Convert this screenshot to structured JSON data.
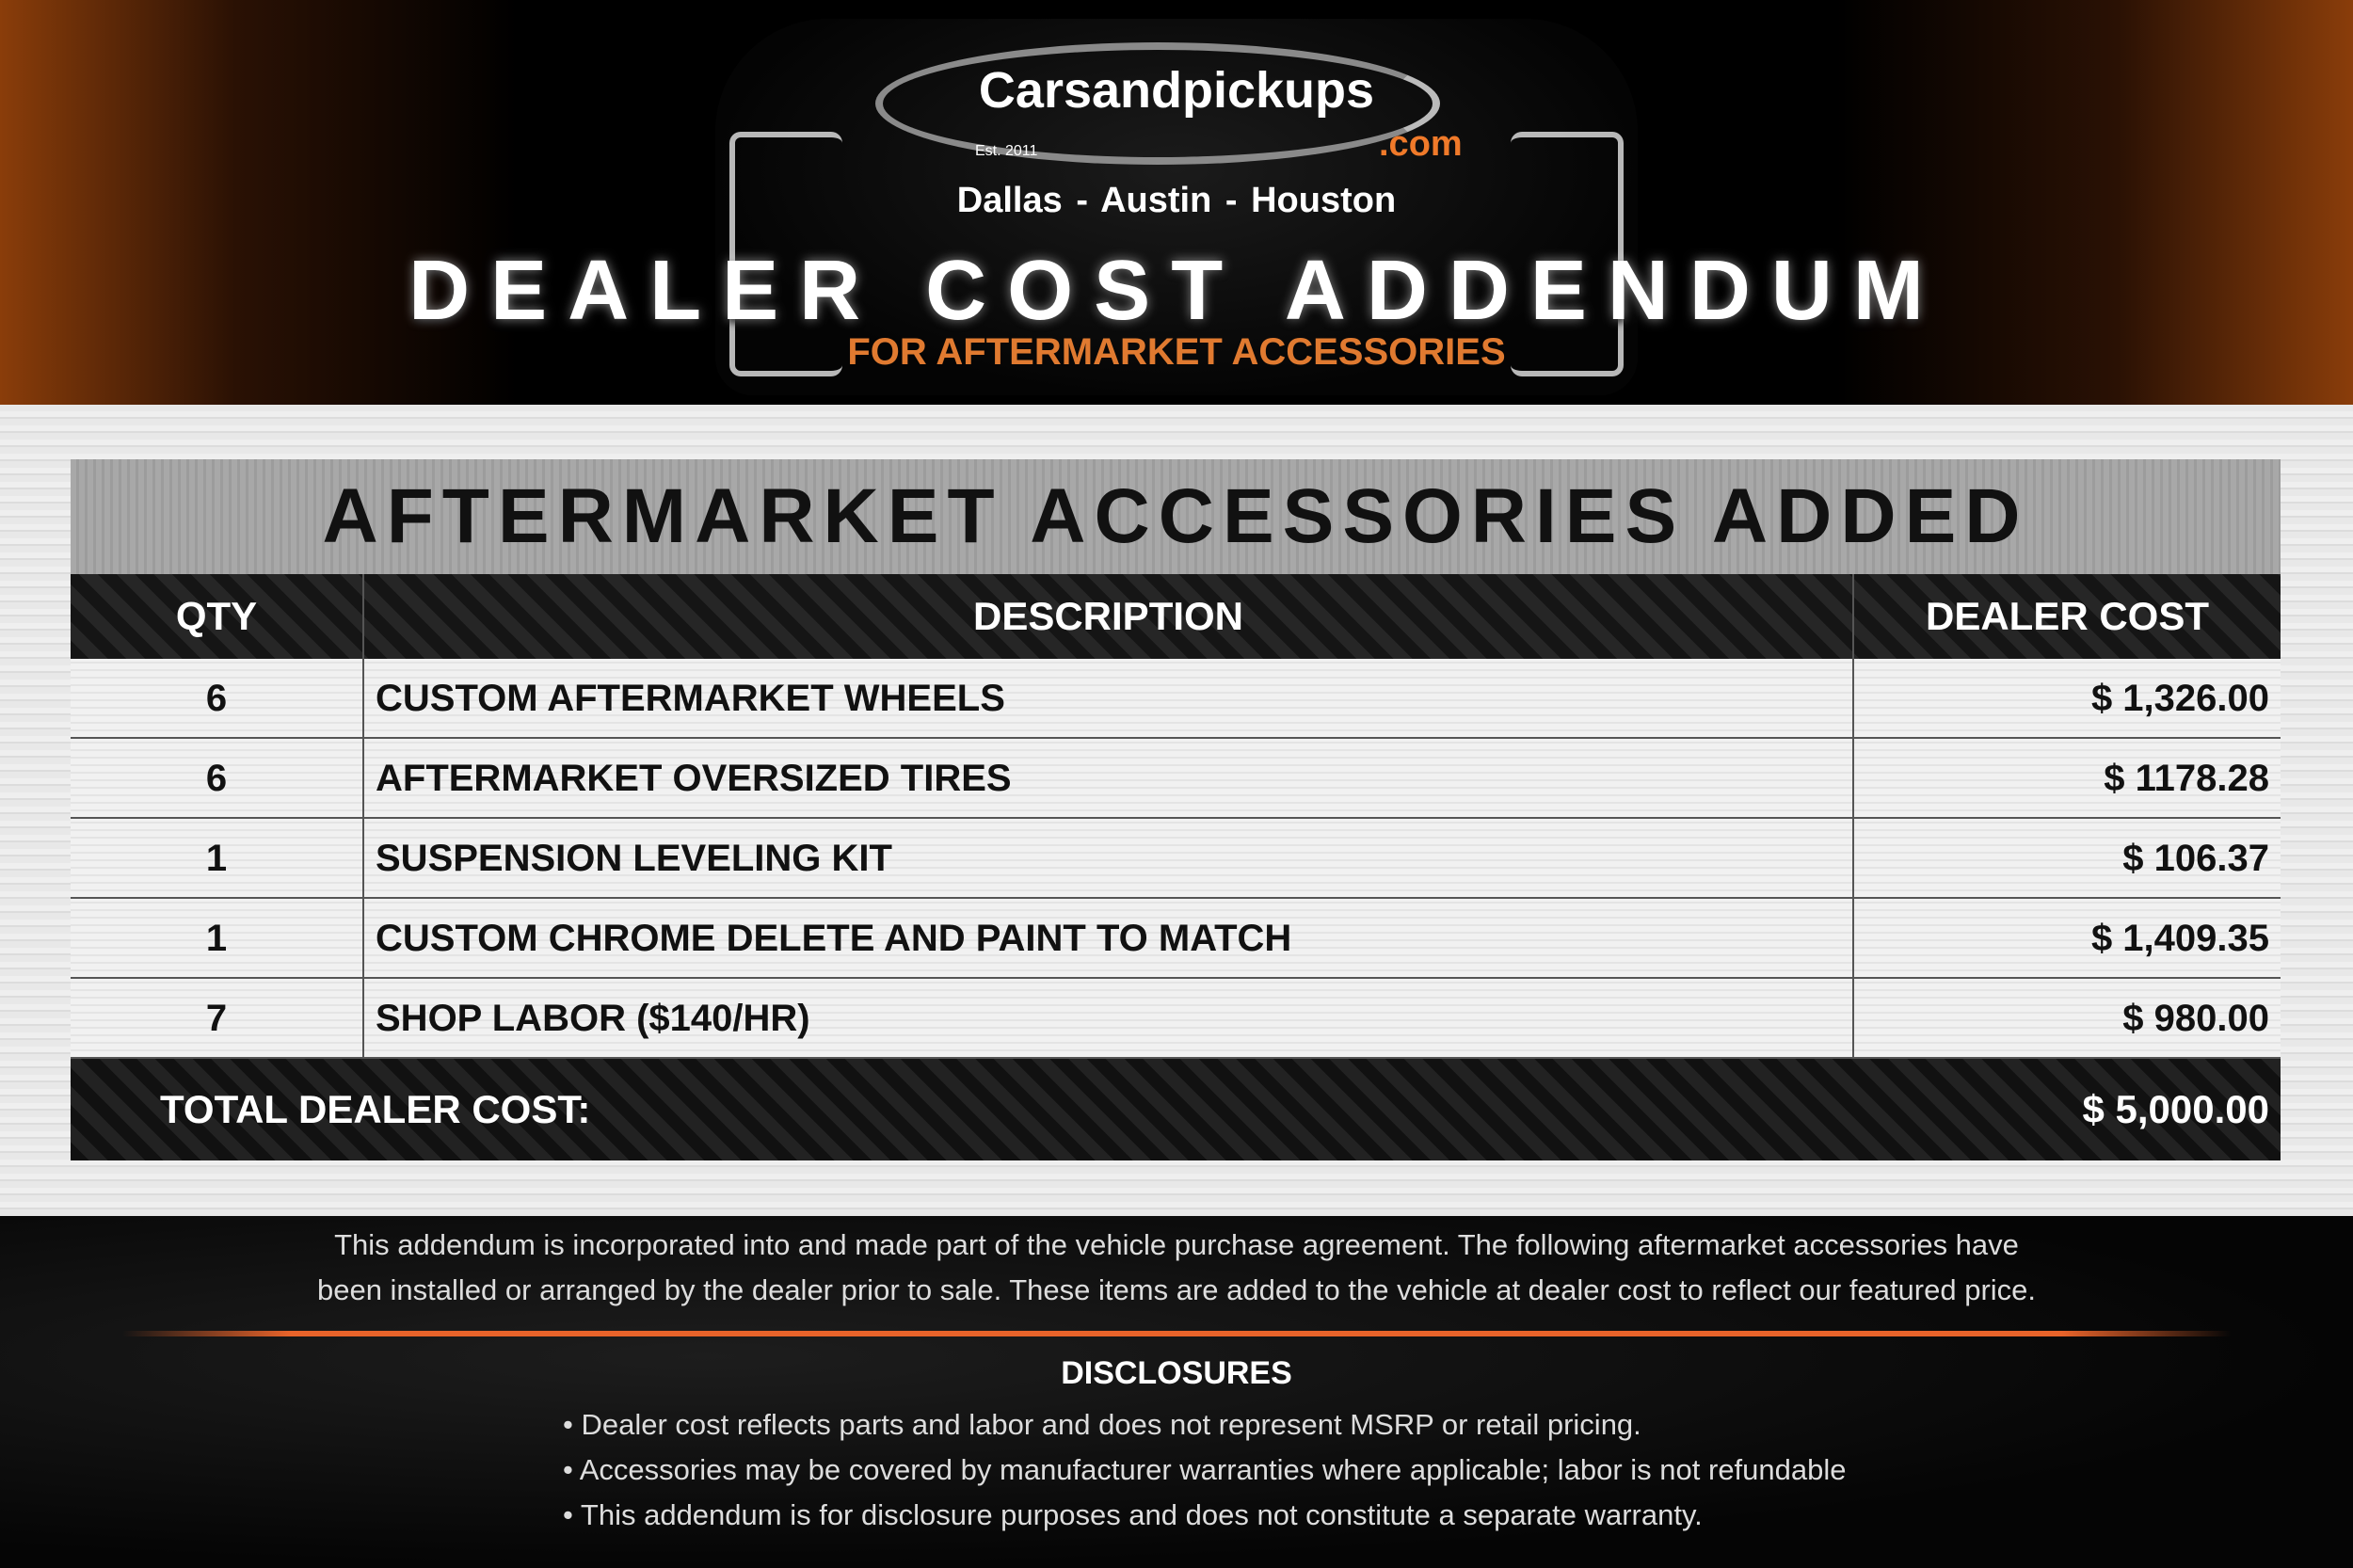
{
  "header": {
    "brand": "Carsandpickups",
    "est": "Est. 2011",
    "domain": ".com",
    "cities": "Dallas  -  Austin  -  Houston",
    "title": "DEALER COST ADDENDUM",
    "subtitle": "FOR AFTERMARKET ACCESSORIES",
    "accent": "#e07a30"
  },
  "table": {
    "title": "AFTERMARKET ACCESSORIES ADDED",
    "columns": [
      "QTY",
      "DESCRIPTION",
      "DEALER COST"
    ],
    "rows": [
      {
        "qty": "6",
        "description": "CUSTOM AFTERMARKET WHEELS",
        "cost": "$ 1,326.00"
      },
      {
        "qty": "6",
        "description": "AFTERMARKET OVERSIZED TIRES",
        "cost": "$ 1178.28"
      },
      {
        "qty": "1",
        "description": "SUSPENSION LEVELING KIT",
        "cost": "$ 106.37"
      },
      {
        "qty": "1",
        "description": "CUSTOM CHROME DELETE AND PAINT TO MATCH",
        "cost": "$ 1,409.35"
      },
      {
        "qty": "7",
        "description": "SHOP LABOR ($140/HR)",
        "cost": "$ 980.00"
      }
    ],
    "total_label": "TOTAL DEALER COST:",
    "total_value": "$ 5,000.00"
  },
  "footer": {
    "paragraph": [
      "This addendum is incorporated into and made part of the vehicle purchase agreement. The following aftermarket accessories have",
      "been installed or arranged by the dealer prior to sale. These items are added to the vehicle at dealer cost to reflect our featured price."
    ],
    "disclosures_title": "DISCLOSURES",
    "disclosures": [
      "• Dealer cost reflects parts and labor and does not represent MSRP or retail pricing.",
      "• Accessories may be covered by manufacturer warranties where applicable; labor is not refundable",
      "• This addendum is for disclosure purposes and does not constitute a separate warranty."
    ]
  }
}
